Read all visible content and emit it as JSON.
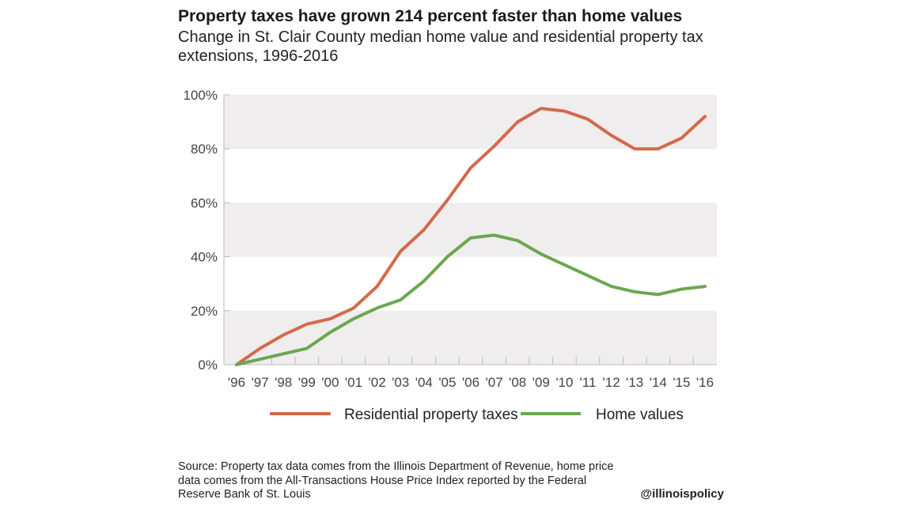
{
  "chart_data": {
    "type": "line",
    "title": "Property taxes have grown 214 percent faster than home values",
    "subtitle": "Change in St. Clair County median home value and residential property tax extensions, 1996-2016",
    "categories": [
      "'96",
      "'97",
      "'98",
      "'99",
      "'00",
      "'01",
      "'02",
      "'03",
      "'04",
      "'05",
      "'06",
      "'07",
      "'08",
      "'09",
      "'10",
      "'11",
      "'12",
      "'13",
      "'14",
      "'15",
      "'16"
    ],
    "yticks": [
      0,
      20,
      40,
      60,
      80,
      100
    ],
    "ytick_labels": [
      "0%",
      "20%",
      "40%",
      "60%",
      "80%",
      "100%"
    ],
    "ylim": [
      0,
      100
    ],
    "xlabel": "",
    "ylabel": "",
    "grid": "alternating horizontal bands",
    "legend_position": "bottom",
    "series": [
      {
        "name": "Residential property taxes",
        "color": "#d4694a",
        "values": [
          0,
          6,
          11,
          15,
          17,
          21,
          29,
          42,
          50,
          61,
          73,
          81,
          90,
          95,
          94,
          91,
          85,
          80,
          80,
          84,
          92
        ]
      },
      {
        "name": "Home values",
        "color": "#6aa84f",
        "values": [
          0,
          2,
          4,
          6,
          12,
          17,
          21,
          24,
          31,
          40,
          47,
          48,
          46,
          41,
          37,
          33,
          29,
          27,
          26,
          28,
          29
        ]
      }
    ]
  },
  "footer": {
    "source": "Source: Property tax data comes from the Illinois Department of Revenue, home price data comes from the All-Transactions House Price Index reported by the Federal Reserve Bank of St. Louis",
    "handle": "@illinoispolicy"
  },
  "colors": {
    "band": "#efedee",
    "axis": "#bbbbbb"
  }
}
